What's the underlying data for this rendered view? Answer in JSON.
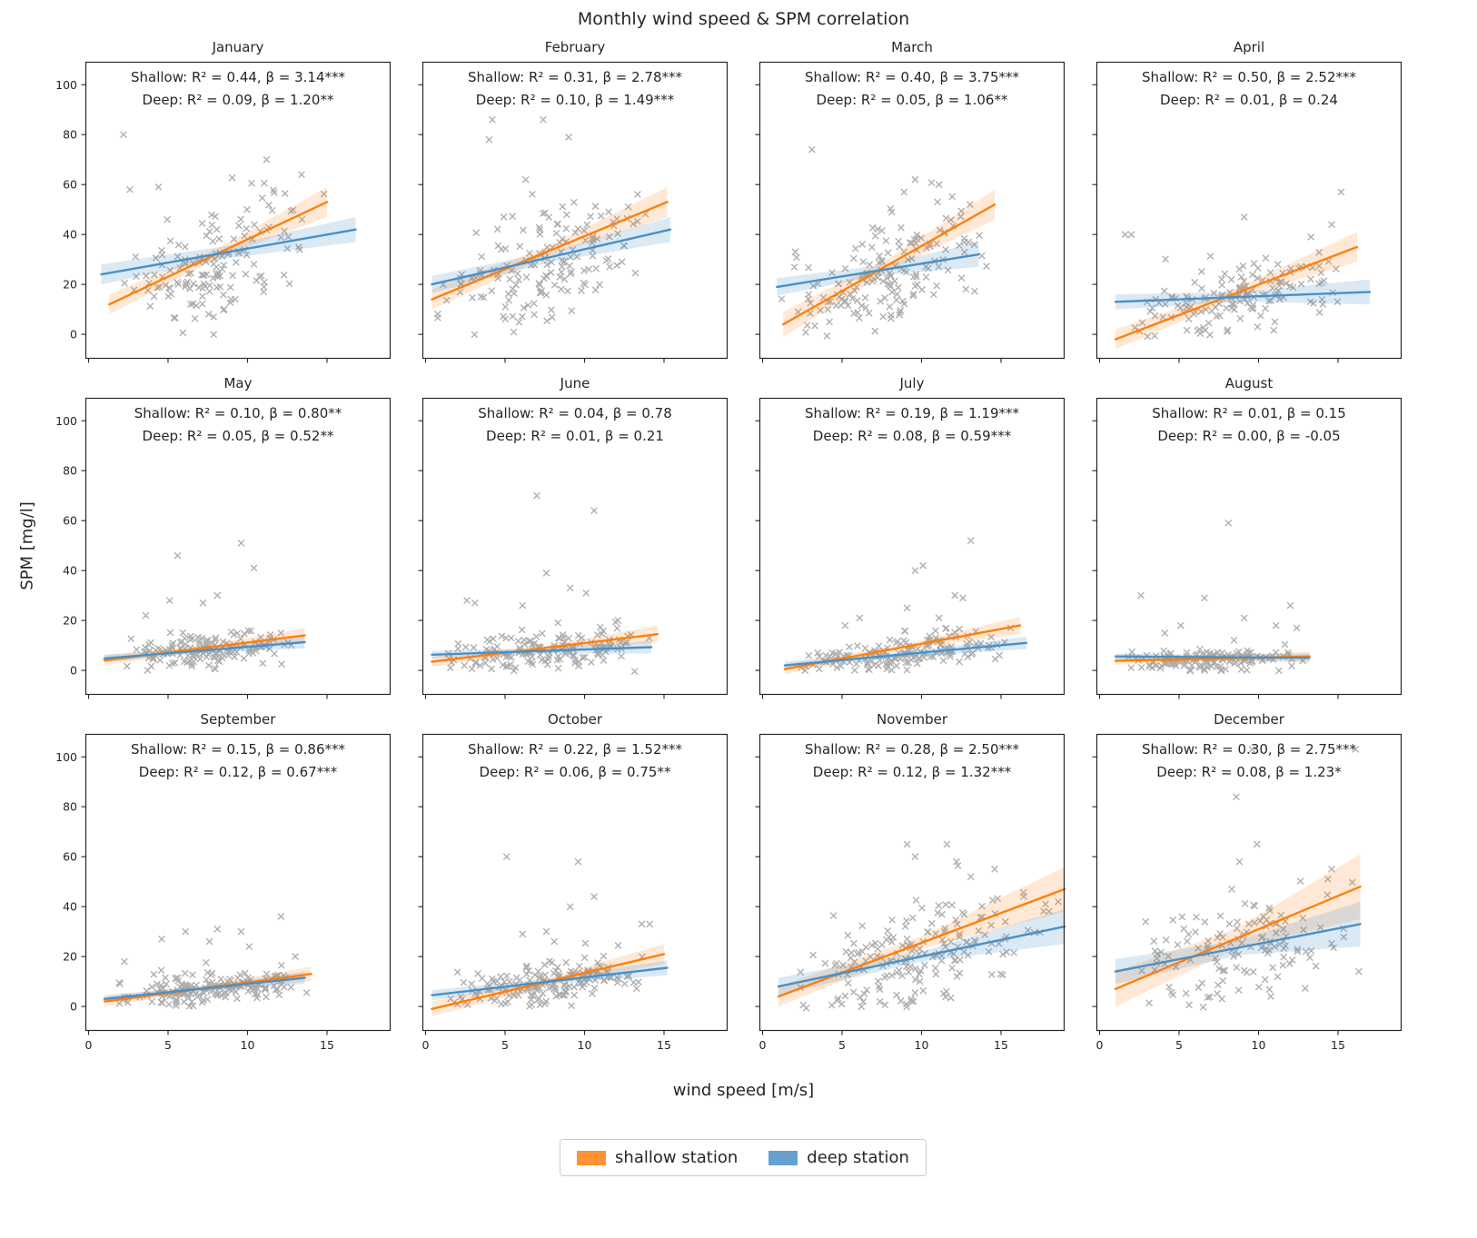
{
  "title": "Monthly wind speed & SPM correlation",
  "xlabel": "wind speed [m/s]",
  "ylabel": "SPM [mg/l]",
  "legend": {
    "shallow": "shallow station",
    "deep": "deep station"
  },
  "colors": {
    "shallow": "#ff7f0e",
    "deep": "#4a90c6",
    "scatter": "#777777",
    "band_shallow": "rgba(255,127,14,0.17)",
    "band_deep": "rgba(74,144,198,0.20)",
    "spine": "#262626"
  },
  "chart_data": {
    "type": "scatter",
    "x_ticks": [
      0,
      5,
      10,
      15
    ],
    "y_ticks": [
      0,
      20,
      40,
      60,
      80,
      100
    ],
    "xlim": [
      -0.2,
      19.0
    ],
    "ylim": [
      -9.8,
      109.2
    ],
    "annotation_format": "Shallow: R² = {R2}, β = {beta}{sig} / Deep: R² = {R2}, β = {beta}{sig}",
    "months": [
      {
        "name": "January",
        "stats": {
          "shallow": {
            "R2": "0.44",
            "beta": "3.14",
            "sig": "***"
          },
          "deep": {
            "R2": "0.09",
            "beta": "1.20",
            "sig": "**"
          }
        },
        "shallow_line": {
          "x": [
            1.3,
            15.0
          ],
          "y": [
            12,
            53
          ],
          "ci": [
            4,
            2,
            6
          ]
        },
        "deep_line": {
          "x": [
            0.8,
            16.8
          ],
          "y": [
            24,
            42
          ],
          "ci": [
            4,
            2.5,
            5
          ]
        },
        "scatter": {
          "n": 150,
          "x_range": [
            1,
            15
          ],
          "intercept": 8,
          "slope": 2.3,
          "sd": 11,
          "skew": 18,
          "clip": -1,
          "outliers": [
            [
              2.2,
              80
            ],
            [
              11.2,
              70
            ],
            [
              13.4,
              64
            ],
            [
              2.6,
              58
            ],
            [
              4.4,
              59
            ]
          ]
        }
      },
      {
        "name": "February",
        "stats": {
          "shallow": {
            "R2": "0.31",
            "beta": "2.78",
            "sig": "***"
          },
          "deep": {
            "R2": "0.10",
            "beta": "1.49",
            "sig": "***"
          }
        },
        "shallow_line": {
          "x": [
            0.4,
            15.2
          ],
          "y": [
            14,
            53
          ],
          "ci": [
            4,
            2,
            6
          ]
        },
        "deep_line": {
          "x": [
            0.4,
            15.4
          ],
          "y": [
            20,
            42
          ],
          "ci": [
            3.5,
            2,
            5
          ]
        },
        "scatter": {
          "n": 160,
          "x_range": [
            0.5,
            15
          ],
          "intercept": 12,
          "slope": 2.1,
          "sd": 11,
          "skew": 16,
          "clip": -1,
          "outliers": [
            [
              4.2,
              86
            ],
            [
              7.4,
              86
            ],
            [
              4.0,
              78
            ],
            [
              9.0,
              79
            ],
            [
              6.3,
              62
            ]
          ]
        }
      },
      {
        "name": "March",
        "stats": {
          "shallow": {
            "R2": "0.40",
            "beta": "3.75",
            "sig": "***"
          },
          "deep": {
            "R2": "0.05",
            "beta": "1.06",
            "sig": "**"
          }
        },
        "shallow_line": {
          "x": [
            1.3,
            14.6
          ],
          "y": [
            4,
            52
          ],
          "ci": [
            5,
            2.5,
            6
          ]
        },
        "deep_line": {
          "x": [
            0.9,
            13.6
          ],
          "y": [
            19,
            32
          ],
          "ci": [
            3.5,
            2,
            5
          ]
        },
        "scatter": {
          "n": 165,
          "x_range": [
            1,
            14.5
          ],
          "intercept": 6,
          "slope": 2.3,
          "sd": 10,
          "skew": 15,
          "clip": -1,
          "outliers": [
            [
              3.1,
              74
            ],
            [
              9.6,
              62
            ],
            [
              11.1,
              60
            ],
            [
              8.9,
              57
            ]
          ]
        }
      },
      {
        "name": "April",
        "stats": {
          "shallow": {
            "R2": "0.50",
            "beta": "2.52",
            "sig": "***"
          },
          "deep": {
            "R2": "0.01",
            "beta": "0.24",
            "sig": ""
          }
        },
        "shallow_line": {
          "x": [
            1.0,
            16.2
          ],
          "y": [
            -2,
            35
          ],
          "ci": [
            4,
            2,
            6
          ]
        },
        "deep_line": {
          "x": [
            1.0,
            17.0
          ],
          "y": [
            13,
            17
          ],
          "ci": [
            3,
            2,
            5
          ]
        },
        "scatter": {
          "n": 150,
          "x_range": [
            1,
            16
          ],
          "intercept": 3,
          "slope": 1.3,
          "sd": 7,
          "skew": 12,
          "clip": -1,
          "outliers": [
            [
              15.2,
              57
            ],
            [
              2.0,
              40
            ],
            [
              1.6,
              40
            ],
            [
              14.6,
              44
            ],
            [
              9.1,
              47
            ],
            [
              13.3,
              39
            ]
          ]
        }
      },
      {
        "name": "May",
        "stats": {
          "shallow": {
            "R2": "0.10",
            "beta": "0.80",
            "sig": "**"
          },
          "deep": {
            "R2": "0.05",
            "beta": "0.52",
            "sig": "**"
          }
        },
        "shallow_line": {
          "x": [
            1.0,
            13.6
          ],
          "y": [
            4,
            14
          ],
          "ci": [
            2,
            1,
            3
          ]
        },
        "deep_line": {
          "x": [
            1.0,
            13.6
          ],
          "y": [
            4.8,
            11.3
          ],
          "ci": [
            1.5,
            1,
            2.5
          ]
        },
        "scatter": {
          "n": 150,
          "x_range": [
            1,
            13.5
          ],
          "intercept": 3,
          "slope": 0.6,
          "sd": 3,
          "skew": 8,
          "clip": -0.5,
          "outliers": [
            [
              5.6,
              46
            ],
            [
              9.6,
              51
            ],
            [
              10.4,
              41
            ],
            [
              8.1,
              30
            ],
            [
              5.1,
              28
            ],
            [
              3.6,
              22
            ],
            [
              7.2,
              27
            ],
            [
              12.1,
              15
            ]
          ]
        }
      },
      {
        "name": "June",
        "stats": {
          "shallow": {
            "R2": "0.04",
            "beta": "0.78",
            "sig": ""
          },
          "deep": {
            "R2": "0.01",
            "beta": "0.21",
            "sig": ""
          }
        },
        "shallow_line": {
          "x": [
            0.4,
            14.6
          ],
          "y": [
            3.5,
            14.5
          ],
          "ci": [
            2,
            1,
            3.5
          ]
        },
        "deep_line": {
          "x": [
            0.4,
            14.2
          ],
          "y": [
            6.3,
            9.3
          ],
          "ci": [
            1.5,
            1,
            2.5
          ]
        },
        "scatter": {
          "n": 160,
          "x_range": [
            0.5,
            14.5
          ],
          "intercept": 4,
          "slope": 0.5,
          "sd": 3.5,
          "skew": 9,
          "clip": -0.5,
          "outliers": [
            [
              7.0,
              70
            ],
            [
              10.6,
              64
            ],
            [
              7.6,
              39
            ],
            [
              9.1,
              33
            ],
            [
              10.1,
              31
            ],
            [
              2.6,
              28
            ],
            [
              3.1,
              27
            ],
            [
              6.1,
              26
            ],
            [
              12.1,
              20
            ]
          ]
        }
      },
      {
        "name": "July",
        "stats": {
          "shallow": {
            "R2": "0.19",
            "beta": "1.19",
            "sig": "***"
          },
          "deep": {
            "R2": "0.08",
            "beta": "0.59",
            "sig": "***"
          }
        },
        "shallow_line": {
          "x": [
            1.4,
            16.2
          ],
          "y": [
            0.5,
            18
          ],
          "ci": [
            2,
            1,
            3.5
          ]
        },
        "deep_line": {
          "x": [
            1.4,
            16.6
          ],
          "y": [
            2,
            11
          ],
          "ci": [
            1.5,
            1,
            2.5
          ]
        },
        "scatter": {
          "n": 160,
          "x_range": [
            1.5,
            16
          ],
          "intercept": 1.5,
          "slope": 0.6,
          "sd": 3,
          "skew": 8,
          "clip": -0.5,
          "outliers": [
            [
              13.1,
              52
            ],
            [
              10.1,
              42
            ],
            [
              9.6,
              40
            ],
            [
              12.1,
              30
            ],
            [
              12.6,
              29
            ],
            [
              9.1,
              25
            ],
            [
              11.1,
              21
            ],
            [
              6.1,
              21
            ],
            [
              5.2,
              18
            ],
            [
              15.6,
              17
            ]
          ]
        }
      },
      {
        "name": "August",
        "stats": {
          "shallow": {
            "R2": "0.01",
            "beta": "0.15",
            "sig": ""
          },
          "deep": {
            "R2": "0.00",
            "beta": "-0.05",
            "sig": ""
          }
        },
        "shallow_line": {
          "x": [
            1.0,
            13.2
          ],
          "y": [
            3.8,
            5.6
          ],
          "ci": [
            1.5,
            1,
            2
          ]
        },
        "deep_line": {
          "x": [
            1.0,
            13.2
          ],
          "y": [
            5.6,
            5.0
          ],
          "ci": [
            1.2,
            0.8,
            1.8
          ]
        },
        "scatter": {
          "n": 150,
          "x_range": [
            1,
            13
          ],
          "intercept": 3.2,
          "slope": 0.12,
          "sd": 2.2,
          "skew": 5,
          "clip": -0.3,
          "outliers": [
            [
              8.1,
              59
            ],
            [
              2.6,
              30
            ],
            [
              6.6,
              29
            ],
            [
              12.0,
              26
            ],
            [
              9.1,
              21
            ],
            [
              5.1,
              18
            ],
            [
              11.1,
              18
            ],
            [
              12.4,
              17
            ],
            [
              4.1,
              15
            ]
          ]
        }
      },
      {
        "name": "September",
        "stats": {
          "shallow": {
            "R2": "0.15",
            "beta": "0.86",
            "sig": "***"
          },
          "deep": {
            "R2": "0.12",
            "beta": "0.67",
            "sig": "***"
          }
        },
        "shallow_line": {
          "x": [
            1.0,
            14.0
          ],
          "y": [
            2,
            13
          ],
          "ci": [
            2,
            1,
            3
          ]
        },
        "deep_line": {
          "x": [
            1.0,
            13.6
          ],
          "y": [
            3,
            11.5
          ],
          "ci": [
            1.5,
            1,
            2.5
          ]
        },
        "scatter": {
          "n": 170,
          "x_range": [
            1,
            14
          ],
          "intercept": 2.5,
          "slope": 0.6,
          "sd": 3,
          "skew": 7,
          "clip": -0.3,
          "outliers": [
            [
              12.1,
              36
            ],
            [
              8.1,
              31
            ],
            [
              6.1,
              30
            ],
            [
              9.6,
              30
            ],
            [
              4.6,
              27
            ],
            [
              7.6,
              26
            ],
            [
              10.1,
              24
            ],
            [
              13.0,
              20
            ]
          ]
        }
      },
      {
        "name": "October",
        "stats": {
          "shallow": {
            "R2": "0.22",
            "beta": "1.52",
            "sig": "***"
          },
          "deep": {
            "R2": "0.06",
            "beta": "0.75",
            "sig": "**"
          }
        },
        "shallow_line": {
          "x": [
            0.4,
            15.0
          ],
          "y": [
            -1,
            21
          ],
          "ci": [
            3,
            1.5,
            4
          ]
        },
        "deep_line": {
          "x": [
            0.4,
            15.2
          ],
          "y": [
            4.5,
            15.5
          ],
          "ci": [
            2,
            1.2,
            3
          ]
        },
        "scatter": {
          "n": 175,
          "x_range": [
            0.5,
            15
          ],
          "intercept": 2,
          "slope": 0.9,
          "sd": 4,
          "skew": 9,
          "clip": -0.5,
          "outliers": [
            [
              5.1,
              60
            ],
            [
              9.6,
              58
            ],
            [
              10.6,
              44
            ],
            [
              9.1,
              40
            ],
            [
              13.6,
              33
            ],
            [
              14.1,
              33
            ],
            [
              7.6,
              30
            ],
            [
              6.1,
              29
            ],
            [
              8.1,
              26
            ]
          ]
        }
      },
      {
        "name": "November",
        "stats": {
          "shallow": {
            "R2": "0.28",
            "beta": "2.50",
            "sig": "***"
          },
          "deep": {
            "R2": "0.12",
            "beta": "1.32",
            "sig": "***"
          }
        },
        "shallow_line": {
          "x": [
            1.0,
            19.0
          ],
          "y": [
            4,
            47
          ],
          "ci": [
            4,
            2.5,
            9
          ]
        },
        "deep_line": {
          "x": [
            1.0,
            19.0
          ],
          "y": [
            8,
            32
          ],
          "ci": [
            3.5,
            2,
            7
          ]
        },
        "scatter": {
          "n": 185,
          "x_range": [
            1,
            18.8
          ],
          "intercept": 2,
          "slope": 1.7,
          "sd": 9,
          "skew": 14,
          "clip": -1,
          "outliers": [
            [
              9.1,
              65
            ],
            [
              11.6,
              65
            ],
            [
              9.6,
              60
            ],
            [
              12.2,
              58
            ],
            [
              14.6,
              55
            ],
            [
              13.1,
              52
            ],
            [
              18.6,
              42
            ],
            [
              17.8,
              41
            ]
          ]
        }
      },
      {
        "name": "December",
        "stats": {
          "shallow": {
            "R2": "0.30",
            "beta": "2.75",
            "sig": "***"
          },
          "deep": {
            "R2": "0.08",
            "beta": "1.23",
            "sig": "*"
          }
        },
        "shallow_line": {
          "x": [
            1.0,
            16.4
          ],
          "y": [
            7,
            48
          ],
          "ci": [
            7,
            4,
            13
          ]
        },
        "deep_line": {
          "x": [
            1.0,
            16.4
          ],
          "y": [
            14,
            33
          ],
          "ci": [
            5,
            3,
            9
          ]
        },
        "scatter": {
          "n": 135,
          "x_range": [
            1,
            16.5
          ],
          "intercept": 7,
          "slope": 1.9,
          "sd": 10,
          "skew": 13,
          "clip": -0.5,
          "outliers": [
            [
              9.6,
              103
            ],
            [
              16.1,
              103
            ],
            [
              8.6,
              84
            ],
            [
              9.9,
              65
            ],
            [
              8.8,
              58
            ],
            [
              14.6,
              55
            ],
            [
              16.3,
              14
            ]
          ]
        }
      }
    ]
  }
}
